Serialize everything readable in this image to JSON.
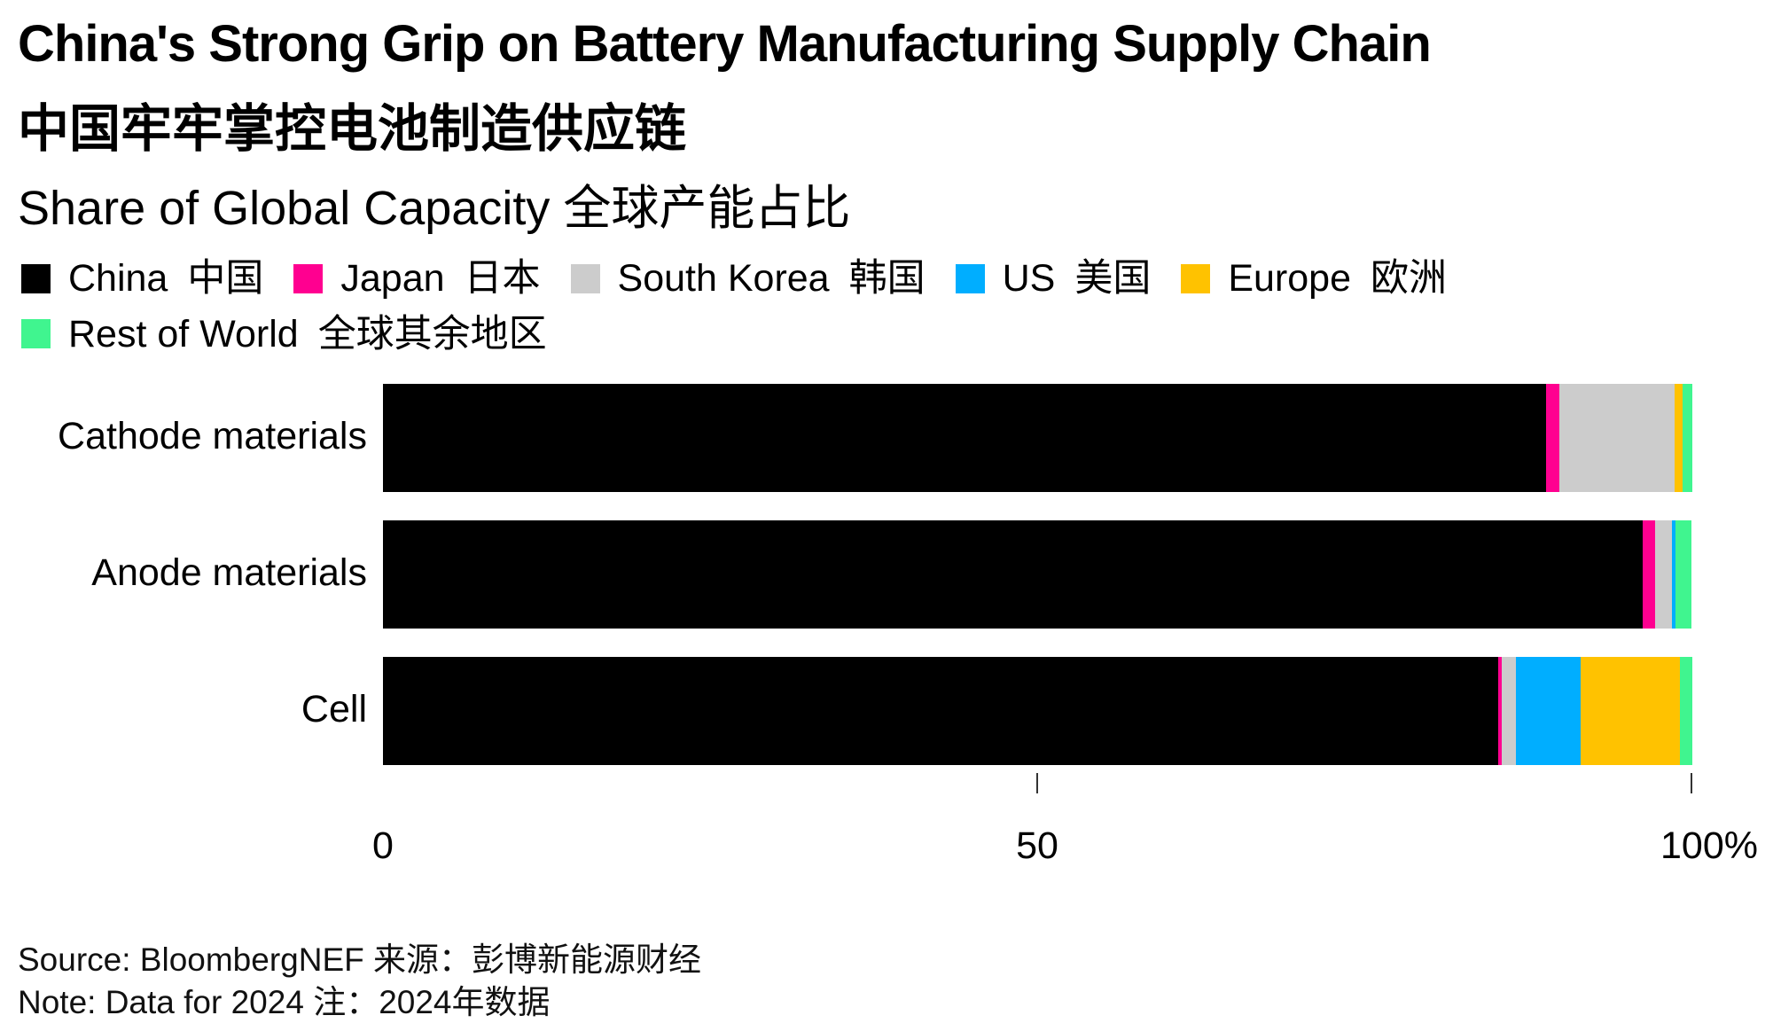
{
  "chart_data": {
    "type": "bar",
    "orientation": "horizontal",
    "stacked": true,
    "title": "China's Strong Grip on Battery Manufacturing Supply Chain",
    "title_zh": "中国牢牢掌控电池制造供应链",
    "subtitle": "Share of Global Capacity  全球产能占比",
    "categories": [
      "Cathode materials",
      "Anode materials",
      "Cell"
    ],
    "series": [
      {
        "name": "China",
        "name_zh": "中国",
        "color": "#000000",
        "values": [
          88.9,
          96.3,
          85.2
        ]
      },
      {
        "name": "Japan",
        "name_zh": "日本",
        "color": "#FF0090",
        "values": [
          1.0,
          0.9,
          0.3
        ]
      },
      {
        "name": "South Korea",
        "name_zh": "韩国",
        "color": "#CCCCCC",
        "values": [
          8.8,
          1.3,
          1.1
        ]
      },
      {
        "name": "US",
        "name_zh": "美国",
        "color": "#00AEFF",
        "values": [
          0.0,
          0.3,
          4.9
        ]
      },
      {
        "name": "Europe",
        "name_zh": "欧洲",
        "color": "#FFC200",
        "values": [
          0.6,
          0.0,
          7.6
        ]
      },
      {
        "name": "Rest of World",
        "name_zh": "全球其余地区",
        "color": "#40F58F",
        "values": [
          0.8,
          1.2,
          1.0
        ]
      }
    ],
    "xlim": [
      0,
      100
    ],
    "xticks": [
      0,
      50,
      100
    ],
    "xtick_labels": [
      "0",
      "50",
      "100%"
    ],
    "grid": false,
    "legend_position": "top-left",
    "source": "Source: BloombergNEF  来源：彭博新能源财经",
    "note": "Note: Data for 2024  注：2024年数据"
  }
}
